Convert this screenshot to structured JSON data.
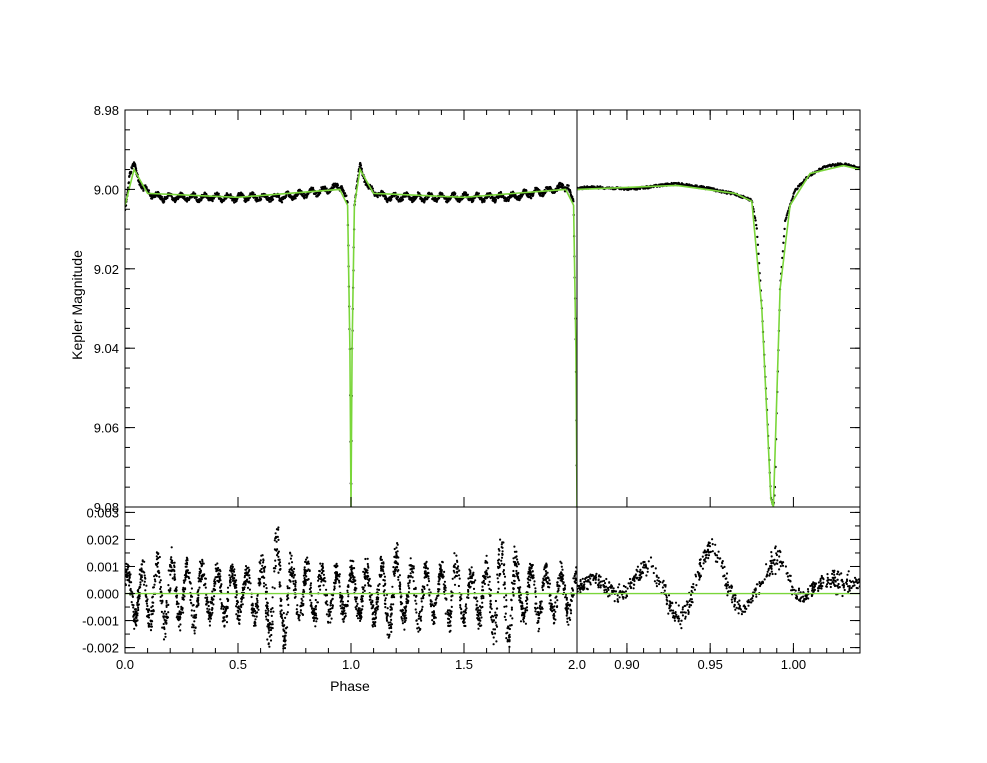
{
  "chart_data": [
    {
      "panel": "top-left",
      "type": "scatter",
      "ylabel": "Kepler Magnitude",
      "xlim": [
        0.0,
        2.0
      ],
      "ylim": [
        9.08,
        8.98
      ],
      "y_inverted": true,
      "yticks": [
        "8.98",
        "9.00",
        "9.02",
        "9.04",
        "9.06",
        "9.08"
      ],
      "series": [
        {
          "role": "observed",
          "color": "#000000",
          "x": [
            0.0,
            0.02,
            0.04,
            0.08,
            0.15,
            0.3,
            0.5,
            0.7,
            0.9,
            0.96,
            0.985,
            0.995,
            1.0,
            1.005,
            1.015,
            1.04,
            1.08,
            1.15,
            1.3,
            1.5,
            1.7,
            1.9,
            1.96,
            1.985,
            1.995,
            2.0
          ],
          "y": [
            9.005,
            8.996,
            8.994,
            9.0,
            9.002,
            9.002,
            9.002,
            9.002,
            9.0,
            8.999,
            9.004,
            9.04,
            9.08,
            9.04,
            9.004,
            8.994,
            9.0,
            9.002,
            9.002,
            9.002,
            9.002,
            9.0,
            8.999,
            9.004,
            9.04,
            9.08
          ]
        },
        {
          "role": "model",
          "color": "#7ad63a",
          "x": [
            0.0,
            0.04,
            0.1,
            0.5,
            0.95,
            0.985,
            0.995,
            1.0,
            1.005,
            1.015,
            1.04,
            1.1,
            1.5,
            1.95,
            1.985,
            1.995,
            2.0
          ],
          "y": [
            9.004,
            8.995,
            9.001,
            9.002,
            9.0,
            9.004,
            9.04,
            9.08,
            9.04,
            9.004,
            8.995,
            9.001,
            9.002,
            9.0,
            9.004,
            9.04,
            9.08
          ]
        }
      ]
    },
    {
      "panel": "top-right",
      "type": "scatter",
      "xlim": [
        0.87,
        1.04
      ],
      "ylim": [
        9.08,
        8.98
      ],
      "y_inverted": true,
      "series": [
        {
          "role": "observed",
          "color": "#000000",
          "x": [
            0.87,
            0.9,
            0.93,
            0.95,
            0.965,
            0.975,
            0.978,
            0.981,
            0.984,
            0.9865,
            0.988,
            0.989,
            0.99,
            0.992,
            0.995,
            0.998,
            1.001,
            1.005,
            1.01,
            1.02,
            1.03,
            1.04
          ],
          "y": [
            9.0,
            8.9995,
            8.999,
            8.9995,
            9.001,
            9.003,
            9.01,
            9.03,
            9.055,
            9.078,
            9.08,
            9.075,
            9.055,
            9.025,
            9.008,
            9.004,
            9.0,
            8.998,
            8.996,
            8.994,
            8.994,
            8.995
          ]
        },
        {
          "role": "model",
          "color": "#7ad63a",
          "x": [
            0.87,
            0.93,
            0.965,
            0.975,
            0.981,
            0.9865,
            0.988,
            0.992,
            0.998,
            1.01,
            1.03,
            1.04
          ],
          "y": [
            9.0,
            8.999,
            9.001,
            9.003,
            9.03,
            9.078,
            9.08,
            9.025,
            9.004,
            8.996,
            8.994,
            8.995
          ]
        }
      ]
    },
    {
      "panel": "bottom-left",
      "type": "scatter",
      "xlabel": "Phase",
      "xlim": [
        0.0,
        2.0
      ],
      "ylim": [
        -0.0022,
        0.0032
      ],
      "xticks": [
        "0.0",
        "0.5",
        "1.0",
        "1.5",
        "2.0"
      ],
      "yticks": [
        "0.003",
        "0.002",
        "0.001",
        "0.000",
        "-0.001",
        "-0.002"
      ],
      "series": [
        {
          "role": "residuals",
          "color": "#000000",
          "x": [
            0.07,
            0.12,
            0.2,
            0.23,
            0.3,
            0.38,
            0.45,
            0.53,
            0.6,
            0.68,
            0.75,
            0.82,
            0.9,
            1.07,
            1.12,
            1.2,
            1.25,
            1.3,
            1.38,
            1.45,
            1.53,
            1.6,
            1.68,
            1.75,
            1.82,
            1.9
          ],
          "y": [
            0.0012,
            -0.0013,
            0.0018,
            -0.0012,
            0.0015,
            -0.001,
            0.0013,
            -0.0009,
            0.0014,
            0.0027,
            -0.0011,
            0.0013,
            -0.001,
            0.0012,
            -0.0013,
            0.0018,
            -0.0012,
            0.0015,
            -0.001,
            0.0016,
            -0.0009,
            0.0014,
            0.0027,
            -0.0011,
            0.0013,
            -0.001
          ]
        },
        {
          "role": "zero-line",
          "color": "#7ad63a",
          "x": [
            0.0,
            2.0
          ],
          "y": [
            0.0,
            0.0
          ]
        }
      ]
    },
    {
      "panel": "bottom-right",
      "type": "scatter",
      "xlim": [
        0.87,
        1.04
      ],
      "ylim": [
        -0.0022,
        0.0032
      ],
      "xticks": [
        "0.90",
        "0.95",
        "1.00"
      ],
      "series": [
        {
          "role": "residuals",
          "color": "#000000",
          "x": [
            0.88,
            0.9,
            0.92,
            0.94,
            0.95,
            0.96,
            0.975,
            0.985,
            0.99,
            1.0,
            1.01,
            1.02,
            1.03
          ],
          "y": [
            0.0004,
            0.0006,
            0.0009,
            0.0011,
            0.0013,
            0.0008,
            -0.0004,
            0.0009,
            0.0013,
            0.0004,
            0.0001,
            0.0005,
            0.0008
          ]
        },
        {
          "role": "zero-line",
          "color": "#7ad63a",
          "x": [
            0.87,
            1.04
          ],
          "y": [
            0.0,
            0.0
          ]
        }
      ]
    }
  ]
}
